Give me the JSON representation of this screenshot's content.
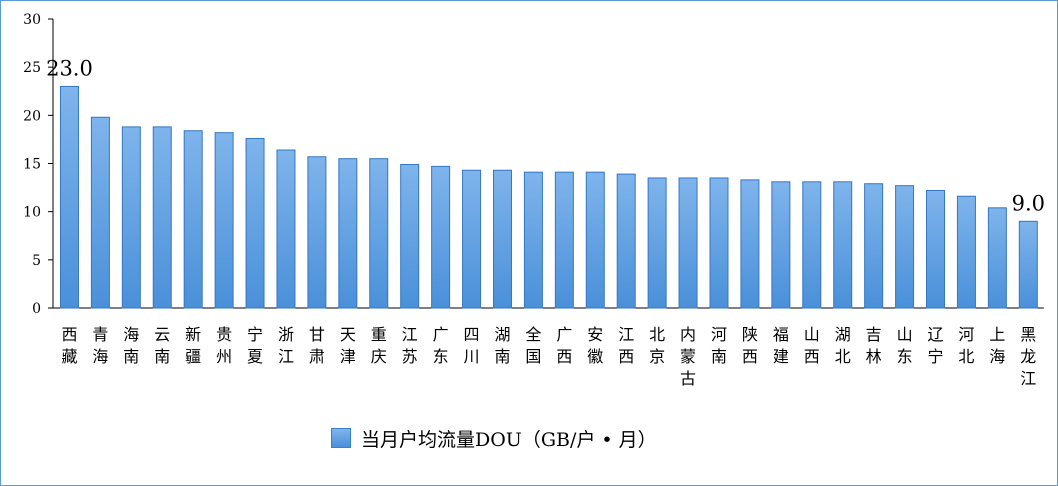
{
  "chart_data": {
    "type": "bar",
    "categories": [
      "西藏",
      "青海",
      "海南",
      "云南",
      "新疆",
      "贵州",
      "宁夏",
      "浙江",
      "甘肃",
      "天津",
      "重庆",
      "江苏",
      "广东",
      "四川",
      "湖南",
      "全国",
      "广西",
      "安徽",
      "江西",
      "北京",
      "内蒙古",
      "河南",
      "陕西",
      "福建",
      "山西",
      "湖北",
      "吉林",
      "山东",
      "辽宁",
      "河北",
      "上海",
      "黑龙江"
    ],
    "series": [
      {
        "name": "当月户均流量DOU（GB/户·月）",
        "values": [
          23.0,
          19.8,
          18.8,
          18.8,
          18.4,
          18.2,
          17.6,
          16.4,
          15.7,
          15.5,
          15.5,
          14.9,
          14.7,
          14.3,
          14.3,
          14.1,
          14.1,
          14.1,
          13.9,
          13.5,
          13.5,
          13.5,
          13.3,
          13.1,
          13.1,
          13.1,
          12.9,
          12.7,
          12.2,
          11.6,
          10.4,
          9.0
        ],
        "color": "#5b9bd5"
      }
    ],
    "data_labels": [
      {
        "index": 0,
        "text": "23.0"
      },
      {
        "index": 31,
        "text": "9.0"
      }
    ],
    "yticks": [
      "0",
      "5",
      "10",
      "15",
      "20",
      "25",
      "30"
    ],
    "ylim": [
      0,
      30
    ],
    "grid": false,
    "legend_position": "bottom-center"
  },
  "legend": {
    "label": "当月户均流量DOU（GB/户 • 月）"
  },
  "colors": {
    "bar_top": "#7fb4ec",
    "bar_bottom": "#4a90d9",
    "bar_stroke": "#3577c2",
    "frame": "#5b9bd5"
  }
}
